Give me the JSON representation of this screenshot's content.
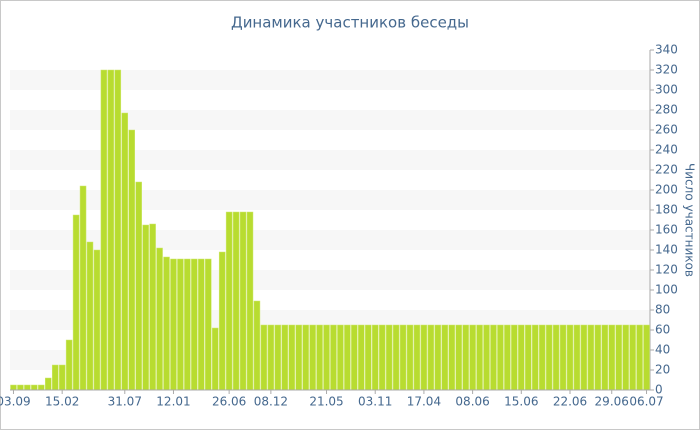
{
  "chart_data": {
    "type": "bar",
    "title": "Динамика участников беседы",
    "y_label": "Число участников",
    "categories": [
      "03.09",
      null,
      null,
      null,
      null,
      null,
      null,
      "15.02",
      null,
      null,
      null,
      null,
      null,
      null,
      null,
      null,
      "31.07",
      null,
      null,
      null,
      null,
      null,
      null,
      "12.01",
      null,
      null,
      null,
      null,
      null,
      null,
      null,
      "26.06",
      null,
      null,
      null,
      null,
      null,
      "08.12",
      null,
      null,
      null,
      null,
      null,
      null,
      null,
      "21.05",
      null,
      null,
      null,
      null,
      null,
      null,
      "03.11",
      null,
      null,
      null,
      null,
      null,
      null,
      "17.04",
      null,
      null,
      null,
      null,
      null,
      null,
      "08.06",
      null,
      null,
      null,
      null,
      null,
      null,
      "15.06",
      null,
      null,
      null,
      null,
      null,
      null,
      "22.06",
      null,
      null,
      null,
      null,
      null,
      "29.06",
      null,
      null,
      null,
      null,
      "06.07"
    ],
    "values": [
      5,
      5,
      5,
      5,
      5,
      12,
      25,
      25,
      50,
      175,
      204,
      148,
      140,
      320,
      320,
      320,
      277,
      260,
      208,
      165,
      166,
      142,
      133,
      131,
      131,
      131,
      131,
      131,
      131,
      62,
      138,
      178,
      178,
      178,
      178,
      89,
      65,
      65,
      65,
      65,
      65,
      65,
      65,
      65,
      65,
      65,
      65,
      65,
      65,
      65,
      65,
      65,
      65,
      65,
      65,
      65,
      65,
      65,
      65,
      65,
      65,
      65,
      65,
      65,
      65,
      65,
      65,
      65,
      65,
      65,
      65,
      65,
      65,
      65,
      65,
      65,
      65,
      65,
      65,
      65,
      65,
      65,
      65,
      65,
      65,
      65,
      65,
      65,
      65,
      65,
      65,
      65
    ],
    "color": "#b8dc30",
    "ylim": [
      0,
      340
    ],
    "yticks": [
      0,
      20,
      40,
      60,
      80,
      100,
      120,
      140,
      160,
      180,
      200,
      220,
      240,
      260,
      280,
      300,
      320,
      340
    ],
    "grid": "bands",
    "y_axis_side": "right"
  }
}
